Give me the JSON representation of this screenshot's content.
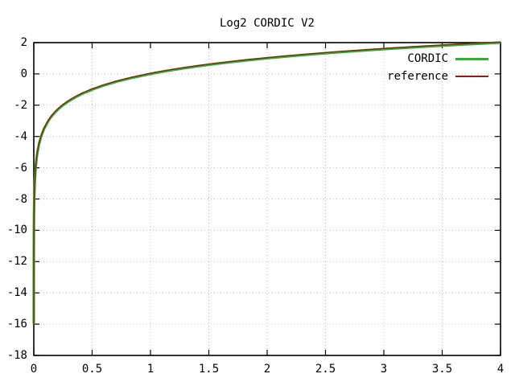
{
  "chart_data": {
    "type": "line",
    "title": "Log2 CORDIC V2",
    "xlabel": "",
    "ylabel": "",
    "xlim": [
      0,
      4
    ],
    "ylim": [
      -18,
      2
    ],
    "grid": true,
    "grid_style": "dotted",
    "legend_position": "top-right-inside",
    "x_ticks": [
      0,
      0.5,
      1,
      1.5,
      2,
      2.5,
      3,
      3.5,
      4
    ],
    "x_tick_labels": [
      "0",
      "0.5",
      "1",
      "1.5",
      "2",
      "2.5",
      "3",
      "3.5",
      "4"
    ],
    "y_ticks": [
      2,
      0,
      -2,
      -4,
      -6,
      -8,
      -10,
      -12,
      -14,
      -16,
      -18
    ],
    "y_tick_labels": [
      "2",
      "0",
      "-2",
      "-4",
      "-6",
      "-8",
      "-10",
      "-12",
      "-14",
      "-16",
      "-18"
    ],
    "function": "y = log2(x), both series overlap from x=2^-16 (y=-16) to x=4 (y=2)",
    "curve_points": [
      [
        1.52588e-05,
        -16
      ],
      [
        3.05176e-05,
        -15
      ],
      [
        6.10352e-05,
        -14
      ],
      [
        0.00012207,
        -13
      ],
      [
        0.000244141,
        -12
      ],
      [
        0.000488281,
        -11
      ],
      [
        0.000976563,
        -10
      ],
      [
        0.00195313,
        -9
      ],
      [
        0.00390625,
        -8
      ],
      [
        0.0078125,
        -7
      ],
      [
        0.015625,
        -6
      ],
      [
        0.0220971,
        -5.5
      ],
      [
        0.03125,
        -5
      ],
      [
        0.0441942,
        -4.5
      ],
      [
        0.0625,
        -4
      ],
      [
        0.0883883,
        -3.5
      ],
      [
        0.125,
        -3
      ],
      [
        0.148651,
        -2.75
      ],
      [
        0.176777,
        -2.5
      ],
      [
        0.210224,
        -2.25
      ],
      [
        0.25,
        -2
      ],
      [
        0.297302,
        -1.75
      ],
      [
        0.353553,
        -1.5
      ],
      [
        0.420448,
        -1.25
      ],
      [
        0.5,
        -1
      ],
      [
        0.594604,
        -0.75
      ],
      [
        0.707107,
        -0.5
      ],
      [
        0.840896,
        -0.25
      ],
      [
        1,
        0
      ],
      [
        1.090508,
        0.125
      ],
      [
        1.189207,
        0.25
      ],
      [
        1.29684,
        0.375
      ],
      [
        1.414214,
        0.5
      ],
      [
        1.542211,
        0.625
      ],
      [
        1.681793,
        0.75
      ],
      [
        1.834008,
        0.875
      ],
      [
        2,
        1
      ],
      [
        2.181015,
        1.125
      ],
      [
        2.378414,
        1.25
      ],
      [
        2.593679,
        1.375
      ],
      [
        2.828427,
        1.5
      ],
      [
        3.084422,
        1.625
      ],
      [
        3.363586,
        1.75
      ],
      [
        3.668016,
        1.875
      ],
      [
        4,
        2
      ]
    ],
    "series": [
      {
        "name": "CORDIC",
        "color": "#2cb52c",
        "width": 3.2
      },
      {
        "name": "reference",
        "color": "#8f1d1d",
        "width": 1.4
      }
    ],
    "colors": {
      "background": "#ffffff",
      "frame": "#000000",
      "grid": "#bdbdbd",
      "text": "#000000"
    }
  }
}
